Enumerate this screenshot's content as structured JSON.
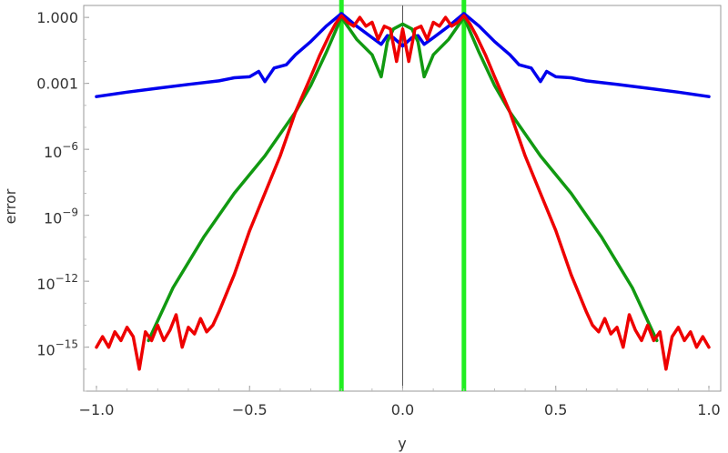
{
  "chart_data": {
    "type": "line",
    "title": "",
    "xlabel": "y",
    "ylabel": "error",
    "y_scale": "log10",
    "xlim": [
      -1.0,
      1.0
    ],
    "ylim": [
      1e-17,
      3.5
    ],
    "grid": false,
    "legend": "none",
    "x_ticks": [
      {
        "value": -1.0,
        "label": "−1.0"
      },
      {
        "value": -0.5,
        "label": "−0.5"
      },
      {
        "value": 0.0,
        "label": "0.0"
      },
      {
        "value": 0.5,
        "label": "0.5"
      },
      {
        "value": 1.0,
        "label": "1.0"
      }
    ],
    "y_ticks": [
      {
        "value": 1,
        "label": "1.000"
      },
      {
        "value": 0.001,
        "label": "0.001"
      },
      {
        "value": 1e-06,
        "base": "10",
        "exp": "−6"
      },
      {
        "value": 1e-09,
        "base": "10",
        "exp": "−9"
      },
      {
        "value": 1e-12,
        "base": "10",
        "exp": "−12"
      },
      {
        "value": 1e-15,
        "base": "10",
        "exp": "−15"
      }
    ],
    "vertical_lines": [
      {
        "x": -0.2,
        "color": "#22ee22"
      },
      {
        "x": 0.2,
        "color": "#22ee22"
      }
    ],
    "series": [
      {
        "color": "#0000ee",
        "x": [
          -1.0,
          -0.9,
          -0.8,
          -0.7,
          -0.6,
          -0.55,
          -0.5,
          -0.47,
          -0.45,
          -0.42,
          -0.38,
          -0.35,
          -0.3,
          -0.25,
          -0.2,
          -0.15,
          -0.1,
          -0.07,
          -0.05,
          -0.03,
          0.0,
          0.03,
          0.05,
          0.07,
          0.1,
          0.15,
          0.2,
          0.25,
          0.3,
          0.35,
          0.38,
          0.42,
          0.45,
          0.47,
          0.5,
          0.55,
          0.6,
          0.7,
          0.8,
          0.9,
          1.0
        ],
        "y": [
          0.00025,
          0.0004,
          0.0006,
          0.0009,
          0.0013,
          0.0018,
          0.002,
          0.0035,
          0.0012,
          0.005,
          0.007,
          0.02,
          0.08,
          0.4,
          1.5,
          0.4,
          0.12,
          0.06,
          0.15,
          0.12,
          0.05,
          0.12,
          0.15,
          0.06,
          0.12,
          0.4,
          1.5,
          0.4,
          0.08,
          0.02,
          0.007,
          0.005,
          0.0012,
          0.0035,
          0.002,
          0.0018,
          0.0013,
          0.0009,
          0.0006,
          0.0004,
          0.00025
        ]
      },
      {
        "color": "#119911",
        "x": [
          -0.83,
          -0.75,
          -0.65,
          -0.55,
          -0.45,
          -0.35,
          -0.3,
          -0.25,
          -0.2,
          -0.15,
          -0.1,
          -0.07,
          -0.05,
          -0.03,
          0.0,
          0.03,
          0.05,
          0.07,
          0.1,
          0.15,
          0.2,
          0.25,
          0.3,
          0.35,
          0.45,
          0.55,
          0.65,
          0.75,
          0.83
        ],
        "y": [
          2e-15,
          5e-13,
          1e-10,
          1e-08,
          5e-07,
          5e-05,
          0.0008,
          0.025,
          1.0,
          0.1,
          0.02,
          0.002,
          0.08,
          0.3,
          0.5,
          0.3,
          0.08,
          0.002,
          0.02,
          0.1,
          1.0,
          0.025,
          0.0008,
          5e-05,
          5e-07,
          1e-08,
          1e-10,
          5e-13,
          2e-15
        ]
      },
      {
        "color": "#ee0000",
        "x": [
          -1.0,
          -0.98,
          -0.96,
          -0.94,
          -0.92,
          -0.9,
          -0.88,
          -0.86,
          -0.84,
          -0.82,
          -0.8,
          -0.78,
          -0.76,
          -0.74,
          -0.72,
          -0.7,
          -0.68,
          -0.66,
          -0.64,
          -0.62,
          -0.6,
          -0.55,
          -0.5,
          -0.45,
          -0.4,
          -0.35,
          -0.3,
          -0.27,
          -0.24,
          -0.22,
          -0.2,
          -0.18,
          -0.16,
          -0.14,
          -0.12,
          -0.1,
          -0.08,
          -0.06,
          -0.04,
          -0.02,
          0.0,
          0.02,
          0.04,
          0.06,
          0.08,
          0.1,
          0.12,
          0.14,
          0.16,
          0.18,
          0.2,
          0.22,
          0.24,
          0.27,
          0.3,
          0.35,
          0.4,
          0.45,
          0.5,
          0.55,
          0.6,
          0.62,
          0.64,
          0.66,
          0.68,
          0.7,
          0.72,
          0.74,
          0.76,
          0.78,
          0.8,
          0.82,
          0.84,
          0.86,
          0.88,
          0.9,
          0.92,
          0.94,
          0.96,
          0.98,
          1.0
        ],
        "y": [
          1e-15,
          3e-15,
          1e-15,
          5e-15,
          2e-15,
          8e-15,
          3e-15,
          1e-16,
          5e-15,
          2e-15,
          1e-14,
          2e-15,
          6e-15,
          3e-14,
          1e-15,
          8e-15,
          4e-15,
          2e-14,
          5e-15,
          1e-14,
          4e-14,
          2e-12,
          2e-10,
          1e-08,
          5e-07,
          5e-05,
          0.002,
          0.02,
          0.15,
          0.5,
          1.2,
          0.6,
          0.4,
          1.0,
          0.4,
          0.6,
          0.1,
          0.4,
          0.3,
          0.01,
          0.3,
          0.01,
          0.3,
          0.4,
          0.1,
          0.6,
          0.4,
          1.0,
          0.4,
          0.6,
          1.2,
          0.5,
          0.15,
          0.02,
          0.002,
          5e-05,
          5e-07,
          1e-08,
          2e-10,
          2e-12,
          4e-14,
          1e-14,
          5e-15,
          2e-14,
          4e-15,
          8e-15,
          1e-15,
          3e-14,
          6e-15,
          2e-15,
          1e-14,
          2e-15,
          5e-15,
          1e-16,
          3e-15,
          8e-15,
          2e-15,
          5e-15,
          1e-15,
          3e-15,
          1e-15
        ]
      }
    ]
  }
}
